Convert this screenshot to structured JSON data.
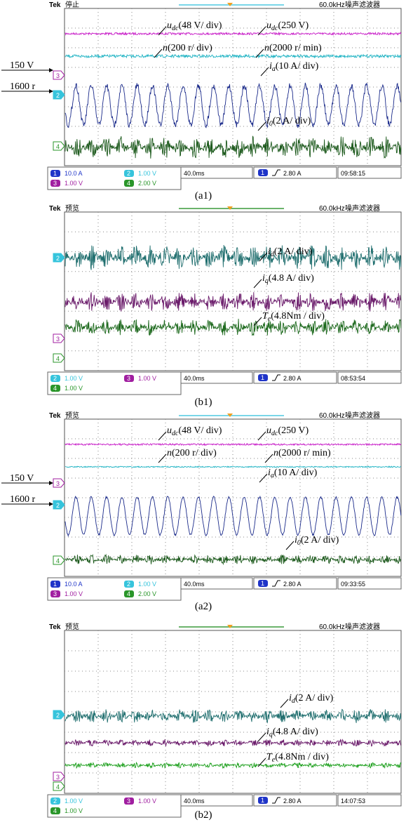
{
  "panels": [
    {
      "caption": "(a1)",
      "header": {
        "brand": "Tek",
        "status": "停止",
        "frequency": "60.0kHz",
        "mode": "噪声滤波器"
      },
      "side_labels": [
        "150 V",
        "1600 r"
      ],
      "markers": [
        "3",
        "2",
        "4"
      ],
      "annotations": [
        {
          "symbol": "u",
          "sub": "dc",
          "text": "(48 V/ div)"
        },
        {
          "symbol": "u",
          "sub": "dc",
          "text": "(250 V)"
        },
        {
          "symbol": "n",
          "sub": "",
          "text": "(200 r/ div)"
        },
        {
          "symbol": "n",
          "sub": "",
          "text": "(2000 r/ min)"
        },
        {
          "symbol": "i",
          "sub": "a",
          "text": "(10 A/ div)"
        },
        {
          "symbol": "i",
          "sub": "0",
          "text": "(2 A/ div)"
        }
      ],
      "channels": [
        {
          "number": "1",
          "setting": "10.0 A"
        },
        {
          "number": "2",
          "setting": "1.00 V"
        },
        {
          "number": "3",
          "setting": "1.00 V"
        },
        {
          "number": "4",
          "setting": "2.00 V"
        }
      ],
      "timebase": "40.0ms",
      "trigger": {
        "channel": "1",
        "level": "2.80 A"
      },
      "clock": "09:58:15"
    },
    {
      "caption": "(b1)",
      "header": {
        "brand": "Tek",
        "status": "预览",
        "frequency": "60.0kHz",
        "mode": "噪声滤波器"
      },
      "side_labels": [],
      "markers": [
        "2",
        "3",
        "4"
      ],
      "annotations": [
        {
          "symbol": "i",
          "sub": "d",
          "text": "(2 A/ div)"
        },
        {
          "symbol": "i",
          "sub": "q",
          "text": "(4.8 A/ div)"
        },
        {
          "symbol": "T",
          "sub": "e",
          "text": "(4.8Nm / div)"
        }
      ],
      "channels": [
        {
          "number": "2",
          "setting": "1.00 V"
        },
        {
          "number": "3",
          "setting": "1.00 V"
        },
        {
          "number": "4",
          "setting": "1.00 V"
        }
      ],
      "timebase": "40.0ms",
      "trigger": {
        "channel": "1",
        "level": "2.80 A"
      },
      "clock": "08:53:54"
    },
    {
      "caption": "(a2)",
      "header": {
        "brand": "Tek",
        "status": "预览",
        "frequency": "60.0kHz",
        "mode": "噪声滤波器"
      },
      "side_labels": [
        "150 V",
        "1600 r"
      ],
      "markers": [
        "3",
        "2",
        "4"
      ],
      "annotations": [
        {
          "symbol": "u",
          "sub": "dc",
          "text": "(48 V/ div)"
        },
        {
          "symbol": "u",
          "sub": "dc",
          "text": "(250 V)"
        },
        {
          "symbol": "n",
          "sub": "",
          "text": "(200 r/ div)"
        },
        {
          "symbol": "n",
          "sub": "",
          "text": "(2000 r/ min)"
        },
        {
          "symbol": "i",
          "sub": "a",
          "text": "(10 A/ div)"
        },
        {
          "symbol": "i",
          "sub": "0",
          "text": "(2 A/ div)"
        }
      ],
      "channels": [
        {
          "number": "1",
          "setting": "10.0 A"
        },
        {
          "number": "2",
          "setting": "1.00 V"
        },
        {
          "number": "3",
          "setting": "1.00 V"
        },
        {
          "number": "4",
          "setting": "2.00 V"
        }
      ],
      "timebase": "40.0ms",
      "trigger": {
        "channel": "1",
        "level": "2.80 A"
      },
      "clock": "09:33:55"
    },
    {
      "caption": "(b2)",
      "header": {
        "brand": "Tek",
        "status": "预览",
        "frequency": "60.0kHz",
        "mode": "噪声滤波器"
      },
      "side_labels": [],
      "markers": [
        "2",
        "3",
        "4"
      ],
      "annotations": [
        {
          "symbol": "i",
          "sub": "d",
          "text": "(2 A/ div)"
        },
        {
          "symbol": "i",
          "sub": "q",
          "text": "(4.8 A/ div)"
        },
        {
          "symbol": "T",
          "sub": "e",
          "text": "(4.8Nm / div)"
        }
      ],
      "channels": [
        {
          "number": "2",
          "setting": "1.00 V"
        },
        {
          "number": "3",
          "setting": "1.00 V"
        },
        {
          "number": "4",
          "setting": "1.00 V"
        }
      ],
      "timebase": "40.0ms",
      "trigger": {
        "channel": "1",
        "level": "2.80 A"
      },
      "clock": "14:07:53"
    }
  ]
}
